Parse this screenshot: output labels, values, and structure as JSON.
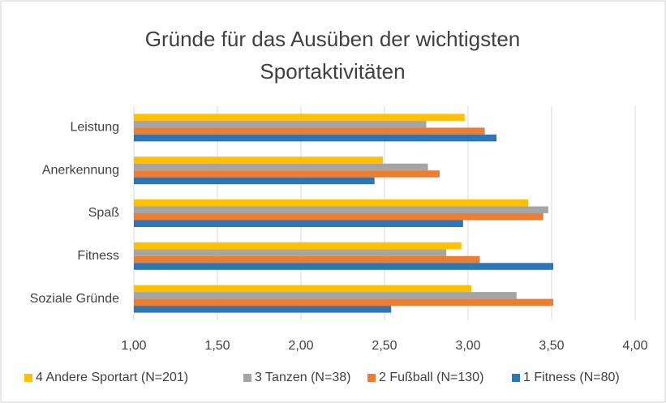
{
  "chart_data": {
    "type": "hbar",
    "title": "Gründe für das Ausüben der wichtigsten Sportaktivitäten",
    "categories": [
      "Leistung",
      "Anerkennung",
      "Spaß",
      "Fitness",
      "Soziale Gründe"
    ],
    "series": [
      {
        "name": "4 Andere Sportart (N=201)",
        "color": "#ffc000",
        "values": [
          2.98,
          2.49,
          3.36,
          2.96,
          3.02
        ]
      },
      {
        "name": "3 Tanzen (N=38)",
        "color": "#a5a5a5",
        "values": [
          2.75,
          2.76,
          3.48,
          2.87,
          3.29
        ]
      },
      {
        "name": "2 Fußball (N=130)",
        "color": "#ed7d31",
        "values": [
          3.1,
          2.83,
          3.45,
          3.07,
          3.51
        ]
      },
      {
        "name": "1 Fitness (N=80)",
        "color": "#2e75b6",
        "values": [
          3.17,
          2.44,
          2.97,
          3.51,
          2.54
        ]
      }
    ],
    "xlim": [
      1,
      4
    ],
    "xticks": [
      {
        "value": 1,
        "label": "1,00"
      },
      {
        "value": 1.5,
        "label": "1,50"
      },
      {
        "value": 2,
        "label": "2,00"
      },
      {
        "value": 2.5,
        "label": "2,50"
      },
      {
        "value": 3,
        "label": "3,00"
      },
      {
        "value": 3.5,
        "label": "3,50"
      },
      {
        "value": 4,
        "label": "4,00"
      }
    ],
    "grid": true,
    "legend": "bottom"
  }
}
